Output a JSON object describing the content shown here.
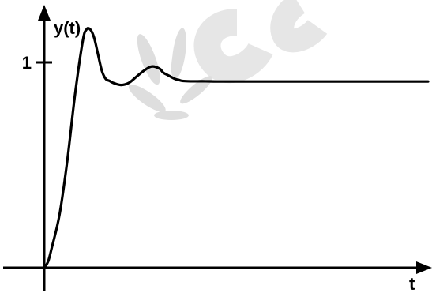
{
  "chart_data": {
    "type": "line",
    "title": "",
    "xlabel": "t",
    "ylabel": "y(t)",
    "xlim": [
      0,
      10
    ],
    "ylim": [
      0,
      1.25
    ],
    "y_ticks": [
      {
        "value": 1,
        "label": "1"
      }
    ],
    "grid": false,
    "legend": "none",
    "series": [
      {
        "color": "#000000",
        "x": [
          0,
          0.1,
          0.2,
          0.4,
          0.6,
          0.8,
          1.0,
          1.1,
          1.2,
          1.3,
          1.4,
          1.5,
          1.6,
          1.7,
          1.8,
          2.0,
          2.2,
          2.4,
          2.6,
          2.8,
          3.0,
          3.1,
          3.2,
          3.4,
          3.5,
          3.6,
          3.8,
          4.0,
          4.2,
          4.5,
          5.0,
          6.0,
          7.0,
          8.0,
          9.0,
          10.0
        ],
        "y": [
          0,
          0.03,
          0.1,
          0.26,
          0.52,
          0.84,
          1.1,
          1.16,
          1.16,
          1.12,
          1.04,
          0.96,
          0.92,
          0.91,
          0.9,
          0.89,
          0.9,
          0.93,
          0.96,
          0.98,
          0.97,
          0.95,
          0.94,
          0.92,
          0.915,
          0.91,
          0.908,
          0.908,
          0.908,
          0.907,
          0.907,
          0.907,
          0.907,
          0.907,
          0.907,
          0.907
        ]
      }
    ]
  },
  "watermark": {
    "color": "#e6e6e6"
  }
}
